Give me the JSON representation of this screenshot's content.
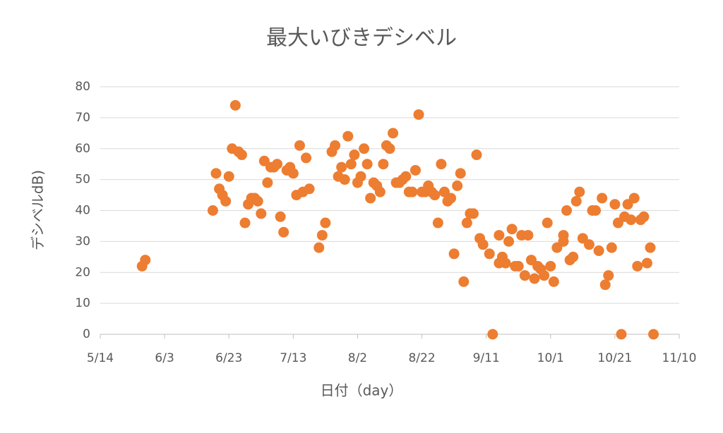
{
  "chart_data": {
    "type": "scatter",
    "title": "最大いびきデシベル",
    "x_label": "日付（day）",
    "y_label": "デシベルdB)",
    "color": "#ed7d31",
    "grid": true,
    "xlim": [
      "5/14",
      "11/10"
    ],
    "xticks": [
      "5/14",
      "6/3",
      "6/23",
      "7/13",
      "8/2",
      "8/22",
      "9/11",
      "10/1",
      "10/21",
      "11/10"
    ],
    "ylim": [
      0,
      80
    ],
    "yticks": [
      0,
      10,
      20,
      30,
      40,
      50,
      60,
      70,
      80
    ],
    "x": [
      "5/27",
      "5/28",
      "6/18",
      "6/19",
      "6/20",
      "6/21",
      "6/22",
      "6/23",
      "6/24",
      "6/25",
      "6/26",
      "6/27",
      "6/28",
      "6/29",
      "6/30",
      "7/1",
      "7/2",
      "7/3",
      "7/4",
      "7/5",
      "7/6",
      "7/7",
      "7/8",
      "7/9",
      "7/10",
      "7/11",
      "7/12",
      "7/13",
      "7/14",
      "7/15",
      "7/16",
      "7/17",
      "7/18",
      "7/21",
      "7/22",
      "7/23",
      "7/25",
      "7/26",
      "7/27",
      "7/28",
      "7/29",
      "7/30",
      "7/31",
      "8/1",
      "8/2",
      "8/3",
      "8/4",
      "8/5",
      "8/6",
      "8/7",
      "8/8",
      "8/9",
      "8/10",
      "8/11",
      "8/12",
      "8/13",
      "8/14",
      "8/15",
      "8/16",
      "8/17",
      "8/18",
      "8/19",
      "8/20",
      "8/21",
      "8/22",
      "8/23",
      "8/24",
      "8/25",
      "8/26",
      "8/27",
      "8/28",
      "8/29",
      "8/30",
      "8/31",
      "9/1",
      "9/2",
      "9/3",
      "9/4",
      "9/5",
      "9/6",
      "9/7",
      "9/8",
      "9/9",
      "9/10",
      "9/12",
      "9/13",
      "9/15",
      "9/15",
      "9/16",
      "9/17",
      "9/18",
      "9/19",
      "9/20",
      "9/21",
      "9/22",
      "9/23",
      "9/24",
      "9/25",
      "9/26",
      "9/27",
      "9/28",
      "9/29",
      "9/30",
      "10/1",
      "10/2",
      "10/3",
      "10/5",
      "10/5",
      "10/6",
      "10/7",
      "10/8",
      "10/9",
      "10/10",
      "10/11",
      "10/13",
      "10/14",
      "10/15",
      "10/16",
      "10/17",
      "10/18",
      "10/19",
      "10/20",
      "10/21",
      "10/22",
      "10/23",
      "10/24",
      "10/25",
      "10/26",
      "10/27",
      "10/28",
      "10/29",
      "10/30",
      "10/31",
      "11/1",
      "11/2"
    ],
    "values": [
      22,
      24,
      40,
      52,
      47,
      45,
      43,
      51,
      60,
      74,
      59,
      58,
      36,
      42,
      44,
      44,
      43,
      39,
      56,
      49,
      54,
      54,
      55,
      38,
      33,
      53,
      54,
      52,
      45,
      61,
      46,
      57,
      47,
      28,
      32,
      36,
      59,
      61,
      51,
      54,
      50,
      64,
      55,
      58,
      49,
      51,
      60,
      55,
      44,
      49,
      48,
      46,
      55,
      61,
      60,
      65,
      49,
      49,
      50,
      51,
      46,
      46,
      53,
      71,
      46,
      46,
      48,
      46,
      45,
      36,
      55,
      46,
      43,
      44,
      26,
      48,
      52,
      17,
      36,
      39,
      39,
      58,
      31,
      29,
      26,
      0,
      32,
      23,
      25,
      23,
      30,
      34,
      22,
      22,
      32,
      19,
      32,
      24,
      18,
      22,
      21,
      19,
      36,
      22,
      17,
      28,
      32,
      30,
      40,
      24,
      25,
      43,
      46,
      31,
      29,
      40,
      40,
      27,
      44,
      16,
      19,
      28,
      42,
      36,
      0,
      38,
      42,
      37,
      44,
      22,
      37,
      38,
      23,
      28,
      0
    ]
  }
}
